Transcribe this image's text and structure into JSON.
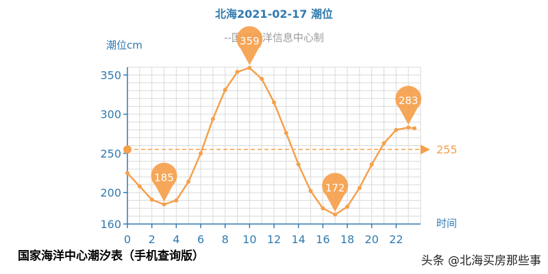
{
  "chart_data": {
    "type": "line",
    "title": "北海2021-02-17 潮位",
    "subtitle": "--国家海洋信息中心制",
    "ylabel": "潮位cm",
    "xlabel": "时间",
    "x_ticks": [
      "0",
      "2",
      "4",
      "6",
      "8",
      "10",
      "12",
      "14",
      "16",
      "18",
      "20",
      "22"
    ],
    "y_ticks": [
      "160",
      "200",
      "250",
      "300",
      "350"
    ],
    "xlim": [
      0,
      24
    ],
    "ylim": [
      160,
      360
    ],
    "grid": true,
    "x": [
      0,
      1,
      2,
      3,
      4,
      5,
      6,
      7,
      8,
      9,
      10,
      11,
      12,
      13,
      14,
      15,
      16,
      17,
      18,
      19,
      20,
      21,
      22,
      23,
      23.5
    ],
    "series": [
      {
        "values": [
          225,
          208,
          191,
          185,
          190,
          214,
          250,
          294,
          331,
          354,
          359,
          345,
          315,
          276,
          236,
          202,
          180,
          172,
          182,
          206,
          236,
          263,
          280,
          283,
          282
        ]
      }
    ],
    "reference_line": {
      "value": 255,
      "label": "255"
    },
    "annotations": [
      {
        "x": 3,
        "y": 185,
        "label": "185"
      },
      {
        "x": 10,
        "y": 359,
        "label": "359"
      },
      {
        "x": 17,
        "y": 172,
        "label": "172"
      },
      {
        "x": 23,
        "y": 283,
        "label": "283"
      }
    ],
    "colors": {
      "line": "#f5a04b",
      "axis": "#2f7ab0",
      "grid": "#d9d9d9",
      "title": "#2f7ab0",
      "subtitle": "#9a9a9a"
    }
  },
  "caption": "国家海洋中心潮汐表（手机查询版）",
  "watermark": "头条 @北海买房那些事"
}
